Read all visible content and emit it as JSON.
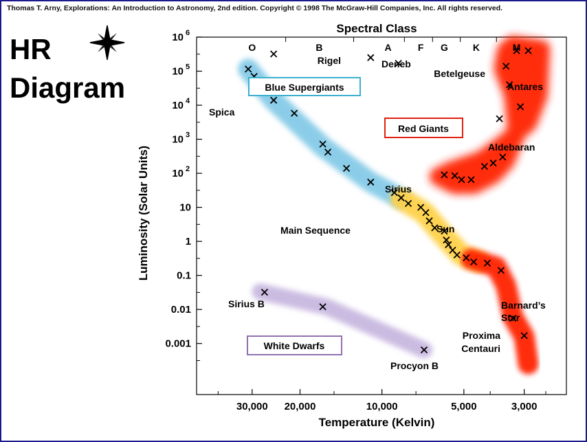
{
  "copyright": "Thomas T. Arny, Explorations: An Introduction to Astronomy, 2nd edition. Copyright © 1998 The McGraw-Hill Companies, Inc. All rights reserved.",
  "slide_title_line1": "HR",
  "slide_title_line2": "Diagram",
  "ornament_icon": "compass-star-icon",
  "colors": {
    "frame": "#1a1a8c",
    "blue_band": "#7fc8e6",
    "yellow_band": "#ffd24a",
    "red": "#ff2000",
    "white_dwarf_band": "#c8b8e0",
    "blue_box": "#3ab0cc",
    "red_box": "#e02010",
    "purple_box": "#9070b0"
  },
  "chart_data": {
    "type": "scatter",
    "title": "Spectral Class",
    "xlabel": "Temperature (Kelvin)",
    "ylabel": "Luminosity (Solar Units)",
    "x_scale": "log-reversed",
    "y_scale": "log",
    "xlim": [
      48000,
      2100
    ],
    "ylim": [
      3.16e-05,
      1000000
    ],
    "x_ticks": [
      {
        "value": 30000,
        "label": "30,000"
      },
      {
        "value": 20000,
        "label": "20,000"
      },
      {
        "value": 10000,
        "label": "10,000"
      },
      {
        "value": 5000,
        "label": "5,000"
      },
      {
        "value": 3000,
        "label": "3,000"
      }
    ],
    "y_ticks": [
      {
        "value": 1000000,
        "base": "10",
        "exp": "6"
      },
      {
        "value": 100000,
        "base": "10",
        "exp": "5"
      },
      {
        "value": 10000,
        "base": "10",
        "exp": "4"
      },
      {
        "value": 1000,
        "base": "10",
        "exp": "3"
      },
      {
        "value": 100,
        "base": "10",
        "exp": "2"
      },
      {
        "value": 10,
        "base": "10",
        "exp": ""
      },
      {
        "value": 1,
        "base": "1",
        "exp": ""
      },
      {
        "value": 0.1,
        "base": "0.1",
        "exp": ""
      },
      {
        "value": 0.01,
        "base": "0.01",
        "exp": ""
      },
      {
        "value": 0.001,
        "base": "0.001",
        "exp": ""
      }
    ],
    "spectral_classes": [
      {
        "label": "O",
        "temp": 30000
      },
      {
        "label": "B",
        "temp": 17000
      },
      {
        "label": "A",
        "temp": 9500
      },
      {
        "label": "F",
        "temp": 7200
      },
      {
        "label": "G",
        "temp": 5900
      },
      {
        "label": "K",
        "temp": 4500
      },
      {
        "label": "M",
        "temp": 3200
      }
    ],
    "region_labels": [
      {
        "text": "Blue Supergiants",
        "box": "blue"
      },
      {
        "text": "Red Giants",
        "box": "red"
      },
      {
        "text": "Main Sequence",
        "box": ""
      },
      {
        "text": "White Dwarfs",
        "box": "purple"
      }
    ],
    "named_stars": [
      {
        "name": "Rigel",
        "temp": 11000,
        "lum": 250000
      },
      {
        "name": "Deneb",
        "temp": 8700,
        "lum": 170000
      },
      {
        "name": "Betelgeuse",
        "temp": 3500,
        "lum": 140000
      },
      {
        "name": "Antares",
        "temp": 3400,
        "lum": 40000
      },
      {
        "name": "Spica",
        "temp": 25000,
        "lum": 14000
      },
      {
        "name": "Aldebaran",
        "temp": 3800,
        "lum": 300
      },
      {
        "name": "Sirius",
        "temp": 9000,
        "lum": 27
      },
      {
        "name": "Sun",
        "temp": 5800,
        "lum": 1
      },
      {
        "name": "Barnard's Star",
        "temp": 3300,
        "lum": 0.0055
      },
      {
        "name": "Proxima Centauri",
        "temp": 3000,
        "lum": 0.0017
      },
      {
        "name": "Sirius B",
        "temp": 27000,
        "lum": 0.032
      },
      {
        "name": "Procyon B",
        "temp": 7000,
        "lum": 0.00065
      }
    ],
    "points": [
      {
        "temp": 25000,
        "lum": 320000
      },
      {
        "temp": 11000,
        "lum": 250000
      },
      {
        "temp": 8700,
        "lum": 170000
      },
      {
        "temp": 31000,
        "lum": 115000
      },
      {
        "temp": 29500,
        "lum": 70000
      },
      {
        "temp": 25000,
        "lum": 14000
      },
      {
        "temp": 21000,
        "lum": 5800
      },
      {
        "temp": 16500,
        "lum": 720
      },
      {
        "temp": 15800,
        "lum": 420
      },
      {
        "temp": 13500,
        "lum": 140
      },
      {
        "temp": 11000,
        "lum": 55
      },
      {
        "temp": 9000,
        "lum": 27
      },
      {
        "temp": 8500,
        "lum": 19
      },
      {
        "temp": 8000,
        "lum": 13
      },
      {
        "temp": 7200,
        "lum": 10
      },
      {
        "temp": 6900,
        "lum": 7
      },
      {
        "temp": 6700,
        "lum": 4
      },
      {
        "temp": 6400,
        "lum": 2.5
      },
      {
        "temp": 5900,
        "lum": 2
      },
      {
        "temp": 5800,
        "lum": 1.1
      },
      {
        "temp": 5700,
        "lum": 0.8
      },
      {
        "temp": 5500,
        "lum": 0.55
      },
      {
        "temp": 5300,
        "lum": 0.4
      },
      {
        "temp": 4900,
        "lum": 0.33
      },
      {
        "temp": 4600,
        "lum": 0.25
      },
      {
        "temp": 4100,
        "lum": 0.23
      },
      {
        "temp": 3650,
        "lum": 0.14
      },
      {
        "temp": 3300,
        "lum": 0.0055
      },
      {
        "temp": 3000,
        "lum": 0.0017
      },
      {
        "temp": 27000,
        "lum": 0.032
      },
      {
        "temp": 16500,
        "lum": 0.012
      },
      {
        "temp": 7000,
        "lum": 0.00065
      },
      {
        "temp": 3200,
        "lum": 400000
      },
      {
        "temp": 2900,
        "lum": 400000
      },
      {
        "temp": 3500,
        "lum": 140000
      },
      {
        "temp": 3400,
        "lum": 40000
      },
      {
        "temp": 3100,
        "lum": 9000
      },
      {
        "temp": 3700,
        "lum": 4000
      },
      {
        "temp": 3600,
        "lum": 300
      },
      {
        "temp": 3900,
        "lum": 200
      },
      {
        "temp": 4200,
        "lum": 160
      },
      {
        "temp": 5900,
        "lum": 90
      },
      {
        "temp": 5400,
        "lum": 85
      },
      {
        "temp": 5100,
        "lum": 65
      },
      {
        "temp": 4700,
        "lum": 65
      }
    ]
  }
}
